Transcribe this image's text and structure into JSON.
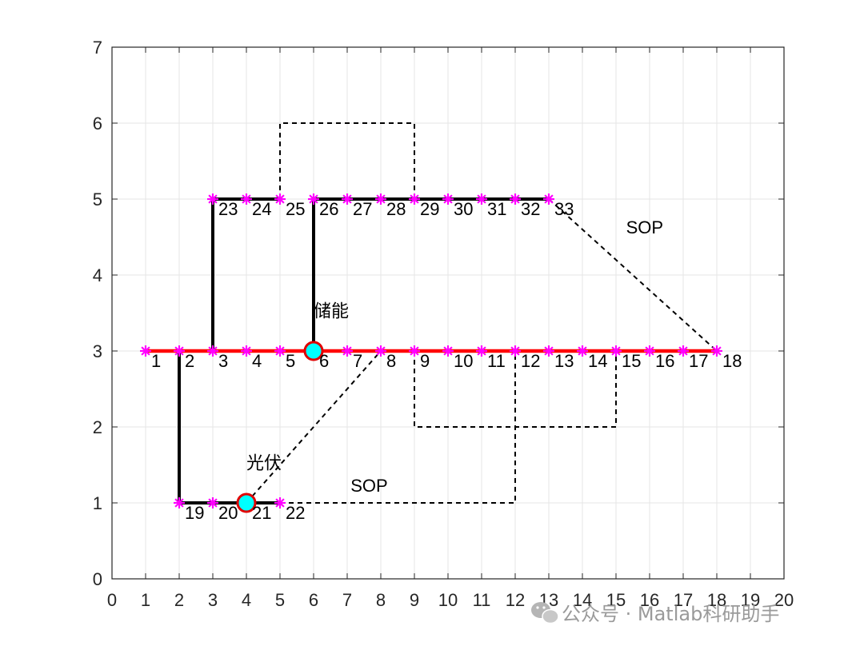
{
  "chart_data": {
    "type": "network-plot",
    "xlim": [
      0,
      20
    ],
    "ylim": [
      0,
      7
    ],
    "x_ticks": [
      "0",
      "1",
      "2",
      "3",
      "4",
      "5",
      "6",
      "7",
      "8",
      "9",
      "10",
      "11",
      "12",
      "13",
      "14",
      "15",
      "16",
      "17",
      "18",
      "19",
      "20"
    ],
    "y_ticks": [
      "0",
      "1",
      "2",
      "3",
      "4",
      "5",
      "6",
      "7"
    ],
    "grid": true,
    "nodes": [
      {
        "id": "1",
        "x": 1,
        "y": 3
      },
      {
        "id": "2",
        "x": 2,
        "y": 3
      },
      {
        "id": "3",
        "x": 3,
        "y": 3
      },
      {
        "id": "4",
        "x": 4,
        "y": 3
      },
      {
        "id": "5",
        "x": 5,
        "y": 3
      },
      {
        "id": "6",
        "x": 6,
        "y": 3
      },
      {
        "id": "7",
        "x": 7,
        "y": 3
      },
      {
        "id": "8",
        "x": 8,
        "y": 3
      },
      {
        "id": "9",
        "x": 9,
        "y": 3
      },
      {
        "id": "10",
        "x": 10,
        "y": 3
      },
      {
        "id": "11",
        "x": 11,
        "y": 3
      },
      {
        "id": "12",
        "x": 12,
        "y": 3
      },
      {
        "id": "13",
        "x": 13,
        "y": 3
      },
      {
        "id": "14",
        "x": 14,
        "y": 3
      },
      {
        "id": "15",
        "x": 15,
        "y": 3
      },
      {
        "id": "16",
        "x": 16,
        "y": 3
      },
      {
        "id": "17",
        "x": 17,
        "y": 3
      },
      {
        "id": "18",
        "x": 18,
        "y": 3
      },
      {
        "id": "19",
        "x": 2,
        "y": 1
      },
      {
        "id": "20",
        "x": 3,
        "y": 1
      },
      {
        "id": "21",
        "x": 4,
        "y": 1
      },
      {
        "id": "22",
        "x": 5,
        "y": 1
      },
      {
        "id": "23",
        "x": 3,
        "y": 5
      },
      {
        "id": "24",
        "x": 4,
        "y": 5
      },
      {
        "id": "25",
        "x": 5,
        "y": 5
      },
      {
        "id": "26",
        "x": 6,
        "y": 5
      },
      {
        "id": "27",
        "x": 7,
        "y": 5
      },
      {
        "id": "28",
        "x": 8,
        "y": 5
      },
      {
        "id": "29",
        "x": 9,
        "y": 5
      },
      {
        "id": "30",
        "x": 10,
        "y": 5
      },
      {
        "id": "31",
        "x": 11,
        "y": 5
      },
      {
        "id": "32",
        "x": 12,
        "y": 5
      },
      {
        "id": "33",
        "x": 13,
        "y": 5
      }
    ],
    "lines": [
      {
        "style": "solid",
        "color": "#ff0000",
        "points": [
          [
            1,
            3
          ],
          [
            18,
            3
          ]
        ]
      },
      {
        "style": "solid",
        "color": "#000000",
        "points": [
          [
            2,
            3
          ],
          [
            2,
            1
          ],
          [
            5,
            1
          ]
        ]
      },
      {
        "style": "solid",
        "color": "#000000",
        "points": [
          [
            3,
            3
          ],
          [
            3,
            5
          ],
          [
            5,
            5
          ]
        ]
      },
      {
        "style": "solid",
        "color": "#000000",
        "points": [
          [
            6,
            3
          ],
          [
            6,
            5
          ],
          [
            13,
            5
          ]
        ]
      },
      {
        "style": "dashed",
        "color": "#000000",
        "points": [
          [
            5,
            5
          ],
          [
            5,
            6
          ],
          [
            9,
            6
          ],
          [
            9,
            5
          ]
        ]
      },
      {
        "style": "dashed",
        "color": "#000000",
        "points": [
          [
            9,
            3
          ],
          [
            9,
            2
          ],
          [
            15,
            2
          ],
          [
            15,
            3
          ]
        ]
      },
      {
        "style": "dashed",
        "color": "#000000",
        "points": [
          [
            5,
            1
          ],
          [
            12,
            1
          ],
          [
            12,
            3
          ]
        ]
      },
      {
        "style": "dashed",
        "color": "#000000",
        "points": [
          [
            4,
            1
          ],
          [
            8,
            3
          ]
        ]
      },
      {
        "style": "dashed",
        "color": "#000000",
        "points": [
          [
            13,
            5
          ],
          [
            18,
            3
          ]
        ]
      }
    ],
    "devices": [
      {
        "label": "储能",
        "x": 6,
        "y": 3,
        "label_x": 6,
        "label_y": 3.45
      },
      {
        "label": "光伏",
        "x": 4,
        "y": 1,
        "label_x": 4,
        "label_y": 1.45
      }
    ],
    "annotations": [
      {
        "text": "SOP",
        "x": 15.3,
        "y": 4.55
      },
      {
        "text": "SOP",
        "x": 7.1,
        "y": 1.15
      }
    ],
    "colors": {
      "main_feeder": "#ff0000",
      "branch": "#000000",
      "node_marker": "#ff00ff",
      "device_fill": "#00ffff",
      "device_edge": "#e00000",
      "grid": "#e6e6e6",
      "axis": "#262626"
    }
  },
  "watermark": {
    "text": "公众号 · Matlab科研助手",
    "icon": "wechat-icon"
  }
}
